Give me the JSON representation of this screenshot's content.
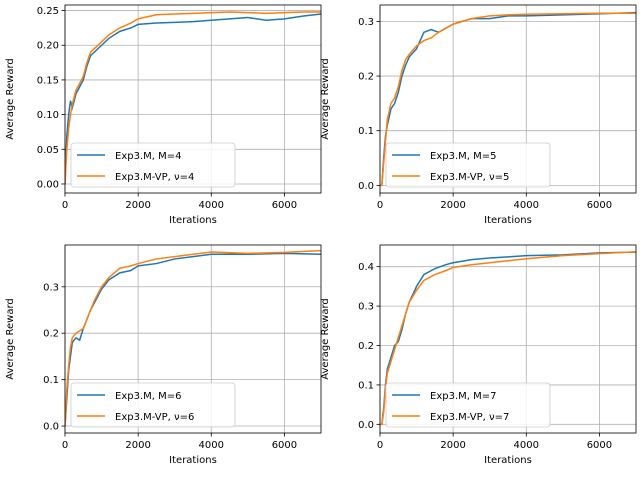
{
  "chart_data": [
    {
      "type": "line",
      "xlabel": "Iterations",
      "ylabel": "Average Reward",
      "xlim": [
        0,
        7000
      ],
      "ylim": [
        -0.013,
        0.258
      ],
      "xticks": [
        0,
        2000,
        4000,
        6000
      ],
      "xtick_labels": [
        "0",
        "2000",
        "4000",
        "6000"
      ],
      "yticks": [
        0,
        0.05,
        0.1,
        0.15,
        0.2,
        0.25
      ],
      "ytick_labels": [
        "0.00",
        "0.05",
        "0.10",
        "0.15",
        "0.20",
        "0.25"
      ],
      "grid": true,
      "legend_position": "lower-left",
      "series": [
        {
          "name": "Exp3.M, M=4",
          "color": "#1f77b4",
          "x": [
            0,
            50,
            100,
            150,
            200,
            300,
            400,
            500,
            600,
            700,
            800,
            1000,
            1200,
            1500,
            1800,
            2000,
            2500,
            3000,
            3500,
            4000,
            4500,
            5000,
            5500,
            6000,
            6500,
            7000
          ],
          "y": [
            0.0,
            0.07,
            0.1,
            0.12,
            0.11,
            0.13,
            0.14,
            0.15,
            0.17,
            0.185,
            0.19,
            0.2,
            0.21,
            0.22,
            0.225,
            0.23,
            0.232,
            0.233,
            0.234,
            0.236,
            0.238,
            0.24,
            0.236,
            0.238,
            0.242,
            0.245
          ]
        },
        {
          "name": "Exp3.M-VP, ν=4",
          "color": "#ff7f0e",
          "x": [
            0,
            50,
            100,
            150,
            200,
            300,
            400,
            500,
            600,
            700,
            800,
            1000,
            1200,
            1500,
            1800,
            2000,
            2500,
            3000,
            3500,
            4000,
            4500,
            5000,
            5500,
            6000,
            6500,
            7000
          ],
          "y": [
            0.0,
            0.05,
            0.08,
            0.1,
            0.115,
            0.135,
            0.145,
            0.155,
            0.175,
            0.19,
            0.195,
            0.205,
            0.215,
            0.225,
            0.232,
            0.238,
            0.244,
            0.245,
            0.246,
            0.247,
            0.248,
            0.247,
            0.246,
            0.247,
            0.248,
            0.248
          ]
        }
      ]
    },
    {
      "type": "line",
      "xlabel": "Iterations",
      "ylabel": "Average Reward",
      "xlim": [
        0,
        7000
      ],
      "ylim": [
        -0.014,
        0.33
      ],
      "xticks": [
        0,
        2000,
        4000,
        6000
      ],
      "xtick_labels": [
        "0",
        "2000",
        "4000",
        "6000"
      ],
      "yticks": [
        0,
        0.1,
        0.2,
        0.3
      ],
      "ytick_labels": [
        "0.0",
        "0.1",
        "0.2",
        "0.3"
      ],
      "grid": true,
      "legend_position": "lower-left",
      "series": [
        {
          "name": "Exp3.M, M=5",
          "color": "#1f77b4",
          "x": [
            0,
            50,
            100,
            150,
            200,
            300,
            400,
            500,
            600,
            700,
            800,
            1000,
            1200,
            1400,
            1600,
            2000,
            2500,
            3000,
            3500,
            4000,
            5000,
            6000,
            7000
          ],
          "y": [
            0.0,
            0.0,
            0.05,
            0.09,
            0.11,
            0.14,
            0.15,
            0.17,
            0.2,
            0.22,
            0.235,
            0.25,
            0.28,
            0.285,
            0.28,
            0.295,
            0.305,
            0.305,
            0.31,
            0.31,
            0.312,
            0.314,
            0.316
          ]
        },
        {
          "name": "Exp3.M-VP, ν=5",
          "color": "#ff7f0e",
          "x": [
            0,
            50,
            100,
            150,
            200,
            300,
            400,
            500,
            600,
            700,
            800,
            1000,
            1200,
            1400,
            1600,
            2000,
            2500,
            3000,
            3500,
            4000,
            5000,
            6000,
            7000
          ],
          "y": [
            0.0,
            0.0,
            0.04,
            0.08,
            0.12,
            0.15,
            0.16,
            0.18,
            0.21,
            0.23,
            0.24,
            0.255,
            0.265,
            0.27,
            0.28,
            0.295,
            0.305,
            0.31,
            0.312,
            0.313,
            0.314,
            0.315,
            0.315
          ]
        }
      ]
    },
    {
      "type": "line",
      "xlabel": "Iterations",
      "ylabel": "Average Reward",
      "xlim": [
        0,
        7000
      ],
      "ylim": [
        -0.015,
        0.39
      ],
      "xticks": [
        0,
        2000,
        4000,
        6000
      ],
      "xtick_labels": [
        "0",
        "2000",
        "4000",
        "6000"
      ],
      "yticks": [
        0,
        0.1,
        0.2,
        0.3
      ],
      "ytick_labels": [
        "0.0",
        "0.1",
        "0.2",
        "0.3"
      ],
      "grid": true,
      "legend_position": "lower-left",
      "series": [
        {
          "name": "Exp3.M, M=6",
          "color": "#1f77b4",
          "x": [
            0,
            50,
            100,
            150,
            200,
            300,
            400,
            500,
            600,
            700,
            800,
            1000,
            1200,
            1500,
            1800,
            2000,
            2500,
            3000,
            3500,
            4000,
            5000,
            6000,
            7000
          ],
          "y": [
            0.0,
            0.06,
            0.12,
            0.15,
            0.18,
            0.19,
            0.185,
            0.21,
            0.23,
            0.25,
            0.265,
            0.295,
            0.315,
            0.33,
            0.335,
            0.345,
            0.35,
            0.36,
            0.365,
            0.37,
            0.37,
            0.372,
            0.37
          ]
        },
        {
          "name": "Exp3.M-VP, ν=6",
          "color": "#ff7f0e",
          "x": [
            0,
            50,
            100,
            150,
            200,
            300,
            400,
            500,
            600,
            700,
            800,
            1000,
            1200,
            1500,
            1800,
            2000,
            2500,
            3000,
            3500,
            4000,
            5000,
            6000,
            7000
          ],
          "y": [
            0.0,
            0.08,
            0.13,
            0.17,
            0.19,
            0.2,
            0.205,
            0.21,
            0.23,
            0.25,
            0.27,
            0.3,
            0.32,
            0.34,
            0.345,
            0.35,
            0.36,
            0.365,
            0.37,
            0.375,
            0.372,
            0.374,
            0.378
          ]
        }
      ]
    },
    {
      "type": "line",
      "xlabel": "Iterations",
      "ylabel": "Average Reward",
      "xlim": [
        0,
        7000
      ],
      "ylim": [
        -0.022,
        0.455
      ],
      "xticks": [
        0,
        2000,
        4000,
        6000
      ],
      "xtick_labels": [
        "0",
        "2000",
        "4000",
        "6000"
      ],
      "yticks": [
        0,
        0.1,
        0.2,
        0.3,
        0.4
      ],
      "ytick_labels": [
        "0.0",
        "0.1",
        "0.2",
        "0.3",
        "0.4"
      ],
      "grid": true,
      "legend_position": "lower-left",
      "series": [
        {
          "name": "Exp3.M, M=7",
          "color": "#1f77b4",
          "x": [
            0,
            50,
            100,
            150,
            200,
            300,
            400,
            500,
            600,
            700,
            800,
            1000,
            1200,
            1500,
            1800,
            2000,
            2500,
            3000,
            3500,
            4000,
            5000,
            6000,
            7000
          ],
          "y": [
            0.0,
            0.0,
            0.04,
            0.1,
            0.14,
            0.17,
            0.2,
            0.21,
            0.24,
            0.28,
            0.31,
            0.35,
            0.38,
            0.395,
            0.405,
            0.41,
            0.418,
            0.422,
            0.425,
            0.428,
            0.43,
            0.435,
            0.437
          ]
        },
        {
          "name": "Exp3.M-VP, ν=7",
          "color": "#ff7f0e",
          "x": [
            0,
            50,
            100,
            150,
            200,
            300,
            400,
            500,
            600,
            700,
            800,
            1000,
            1200,
            1500,
            1800,
            2000,
            2500,
            3000,
            3500,
            4000,
            5000,
            6000,
            7000
          ],
          "y": [
            0.0,
            0.0,
            0.03,
            0.09,
            0.13,
            0.16,
            0.19,
            0.22,
            0.25,
            0.28,
            0.31,
            0.34,
            0.365,
            0.38,
            0.39,
            0.398,
            0.405,
            0.41,
            0.415,
            0.42,
            0.428,
            0.433,
            0.438
          ]
        }
      ]
    }
  ]
}
